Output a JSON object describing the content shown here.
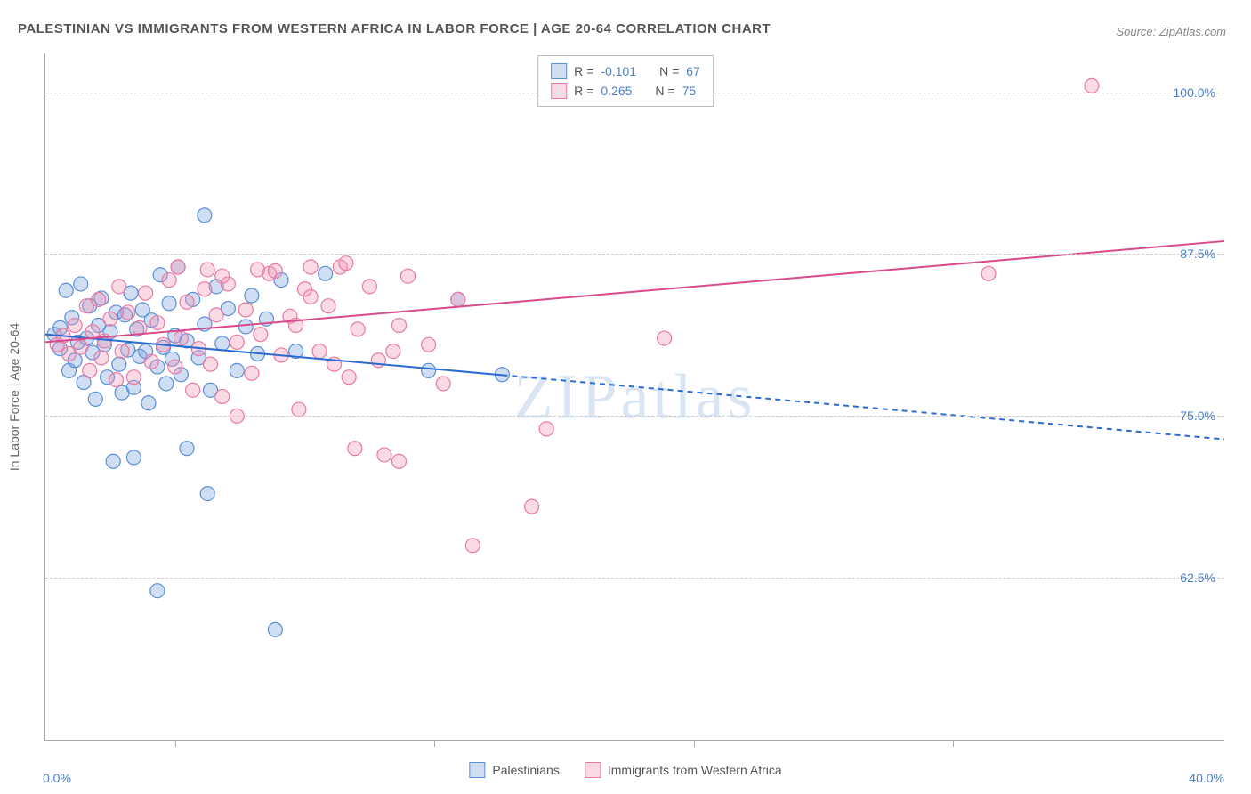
{
  "title": "PALESTINIAN VS IMMIGRANTS FROM WESTERN AFRICA IN LABOR FORCE | AGE 20-64 CORRELATION CHART",
  "source": "Source: ZipAtlas.com",
  "watermark": "ZIPatlas",
  "chart": {
    "type": "scatter",
    "ylabel": "In Labor Force | Age 20-64",
    "xlim": [
      0,
      40
    ],
    "ylim": [
      50,
      103
    ],
    "x_ticks": [
      0,
      40
    ],
    "x_tick_labels": [
      "0.0%",
      "40.0%"
    ],
    "x_inner_tick_positions": [
      4.4,
      13.2,
      22.0,
      30.8
    ],
    "y_gridlines": [
      62.5,
      75.0,
      87.5,
      100.0
    ],
    "y_tick_labels": [
      "62.5%",
      "75.0%",
      "87.5%",
      "100.0%"
    ],
    "background_color": "#ffffff",
    "grid_color": "#cccccc",
    "axis_color": "#aaaaaa",
    "label_color": "#666666",
    "tick_color": "#4a7fc8",
    "title_color": "#555555",
    "marker_radius": 8,
    "marker_opacity": 0.55,
    "series": [
      {
        "name": "Palestinians",
        "color_fill": "rgba(120,160,220,0.35)",
        "color_stroke": "#5b8fd6",
        "R_label": "R =",
        "R": "-0.101",
        "N_label": "N =",
        "N": "67",
        "trend": {
          "x1": 0,
          "y1": 81.3,
          "x2": 40,
          "y2": 73.2,
          "solid_until_x": 15.5,
          "color": "#2b6bd1",
          "width": 2
        },
        "points": [
          [
            0.3,
            81.3
          ],
          [
            0.5,
            80.2
          ],
          [
            0.5,
            81.8
          ],
          [
            0.7,
            84.7
          ],
          [
            0.8,
            78.5
          ],
          [
            0.9,
            82.6
          ],
          [
            1.0,
            79.3
          ],
          [
            1.1,
            80.7
          ],
          [
            1.2,
            85.2
          ],
          [
            1.3,
            77.6
          ],
          [
            1.4,
            81.0
          ],
          [
            1.5,
            83.5
          ],
          [
            1.6,
            79.9
          ],
          [
            1.7,
            76.3
          ],
          [
            1.8,
            82.0
          ],
          [
            1.9,
            84.1
          ],
          [
            2.0,
            80.5
          ],
          [
            2.1,
            78.0
          ],
          [
            2.2,
            81.5
          ],
          [
            2.3,
            71.5
          ],
          [
            2.4,
            83.0
          ],
          [
            2.5,
            79.0
          ],
          [
            2.6,
            76.8
          ],
          [
            2.7,
            82.8
          ],
          [
            2.8,
            80.1
          ],
          [
            2.9,
            84.5
          ],
          [
            3.0,
            77.2
          ],
          [
            3.0,
            71.8
          ],
          [
            3.1,
            81.7
          ],
          [
            3.2,
            79.6
          ],
          [
            3.3,
            83.2
          ],
          [
            3.4,
            80.0
          ],
          [
            3.5,
            76.0
          ],
          [
            3.6,
            82.4
          ],
          [
            3.8,
            78.8
          ],
          [
            3.8,
            61.5
          ],
          [
            3.9,
            85.9
          ],
          [
            4.0,
            80.3
          ],
          [
            4.1,
            77.5
          ],
          [
            4.2,
            83.7
          ],
          [
            4.3,
            79.4
          ],
          [
            4.4,
            81.2
          ],
          [
            4.5,
            86.5
          ],
          [
            4.6,
            78.2
          ],
          [
            4.8,
            80.8
          ],
          [
            4.8,
            72.5
          ],
          [
            5.0,
            84.0
          ],
          [
            5.2,
            79.5
          ],
          [
            5.4,
            82.1
          ],
          [
            5.5,
            69.0
          ],
          [
            5.6,
            77.0
          ],
          [
            5.8,
            85.0
          ],
          [
            6.0,
            80.6
          ],
          [
            6.2,
            83.3
          ],
          [
            5.4,
            90.5
          ],
          [
            6.5,
            78.5
          ],
          [
            6.8,
            81.9
          ],
          [
            7.0,
            84.3
          ],
          [
            7.2,
            79.8
          ],
          [
            7.5,
            82.5
          ],
          [
            8.0,
            85.5
          ],
          [
            8.5,
            80.0
          ],
          [
            7.8,
            58.5
          ],
          [
            9.5,
            86.0
          ],
          [
            13.0,
            78.5
          ],
          [
            14.0,
            84.0
          ],
          [
            15.5,
            78.2
          ]
        ]
      },
      {
        "name": "Immigrants from Western Africa",
        "color_fill": "rgba(240,150,180,0.35)",
        "color_stroke": "#e87ba3",
        "R_label": "R =",
        "R": "0.265",
        "N_label": "N =",
        "N": "75",
        "trend": {
          "x1": 0,
          "y1": 80.7,
          "x2": 40,
          "y2": 88.5,
          "solid_until_x": 40,
          "color": "#d84a8a",
          "width": 2
        },
        "points": [
          [
            0.4,
            80.5
          ],
          [
            0.6,
            81.2
          ],
          [
            0.8,
            79.8
          ],
          [
            1.0,
            82.0
          ],
          [
            1.2,
            80.3
          ],
          [
            1.4,
            83.5
          ],
          [
            1.5,
            78.5
          ],
          [
            1.6,
            81.5
          ],
          [
            1.8,
            84.0
          ],
          [
            1.9,
            79.5
          ],
          [
            2.0,
            80.8
          ],
          [
            2.2,
            82.5
          ],
          [
            2.4,
            77.8
          ],
          [
            2.5,
            85.0
          ],
          [
            2.6,
            80.0
          ],
          [
            2.8,
            83.0
          ],
          [
            3.0,
            78.0
          ],
          [
            3.2,
            81.8
          ],
          [
            3.4,
            84.5
          ],
          [
            3.6,
            79.2
          ],
          [
            3.8,
            82.2
          ],
          [
            4.0,
            80.5
          ],
          [
            4.2,
            85.5
          ],
          [
            4.4,
            78.8
          ],
          [
            4.6,
            81.0
          ],
          [
            4.8,
            83.8
          ],
          [
            5.0,
            77.0
          ],
          [
            5.2,
            80.2
          ],
          [
            5.4,
            84.8
          ],
          [
            5.6,
            79.0
          ],
          [
            5.8,
            82.8
          ],
          [
            6.0,
            76.5
          ],
          [
            6.2,
            85.2
          ],
          [
            6.5,
            80.7
          ],
          [
            6.8,
            83.2
          ],
          [
            7.0,
            78.3
          ],
          [
            7.3,
            81.3
          ],
          [
            7.6,
            86.0
          ],
          [
            8.0,
            79.7
          ],
          [
            8.3,
            82.7
          ],
          [
            8.6,
            75.5
          ],
          [
            9.0,
            84.2
          ],
          [
            9.3,
            80.0
          ],
          [
            9.6,
            83.5
          ],
          [
            10.0,
            86.5
          ],
          [
            10.3,
            78.0
          ],
          [
            10.6,
            81.7
          ],
          [
            11.0,
            85.0
          ],
          [
            11.3,
            79.3
          ],
          [
            11.5,
            72.0
          ],
          [
            12.0,
            82.0
          ],
          [
            12.3,
            85.8
          ],
          [
            12.0,
            71.5
          ],
          [
            13.0,
            80.5
          ],
          [
            13.5,
            77.5
          ],
          [
            14.0,
            84.0
          ],
          [
            14.5,
            65.0
          ],
          [
            16.5,
            68.0
          ],
          [
            17.0,
            74.0
          ],
          [
            21.0,
            81.0
          ],
          [
            32.0,
            86.0
          ],
          [
            35.5,
            100.5
          ],
          [
            10.2,
            86.8
          ],
          [
            9.0,
            86.5
          ],
          [
            7.8,
            86.2
          ],
          [
            10.5,
            72.5
          ],
          [
            6.0,
            85.8
          ],
          [
            5.5,
            86.3
          ],
          [
            4.5,
            86.5
          ],
          [
            8.8,
            84.8
          ],
          [
            11.8,
            80.0
          ],
          [
            7.2,
            86.3
          ],
          [
            6.5,
            75.0
          ],
          [
            8.5,
            82.0
          ],
          [
            9.8,
            79.0
          ]
        ]
      }
    ]
  }
}
